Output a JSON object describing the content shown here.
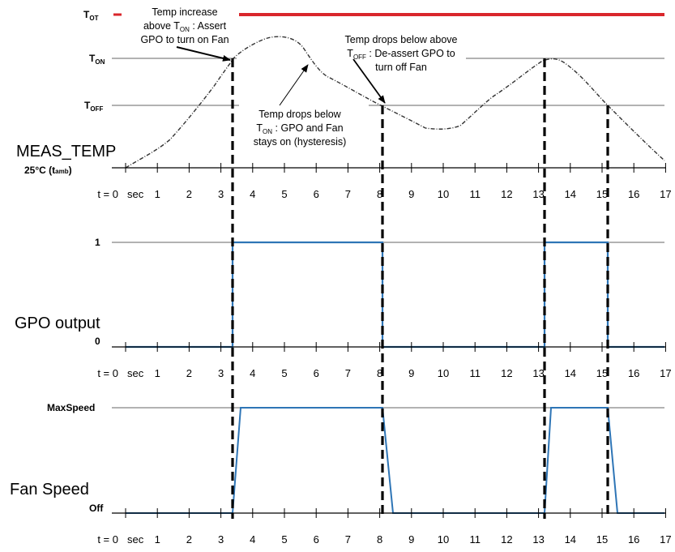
{
  "colors": {
    "threshold_line": "#999999",
    "tot_line": "#d9262b",
    "signal": "#2e75b6",
    "dash": "#000000",
    "curve": "#333333"
  },
  "levels": {
    "tot": {
      "main": "T",
      "sub": "OT"
    },
    "ton": {
      "main": "T",
      "sub": "ON"
    },
    "toff": {
      "main": "T",
      "sub": "OFF"
    },
    "amb": {
      "main": "25°C (t",
      "sub": "amb",
      "tail": ")"
    }
  },
  "panels": {
    "temp": {
      "title": "MEAS_TEMP"
    },
    "gpo": {
      "title": "GPO output",
      "high": "1",
      "low": "0"
    },
    "fan": {
      "title": "Fan Speed",
      "high": "MaxSpeed",
      "low": "Off"
    }
  },
  "axis": {
    "start": "t = 0",
    "unit": "sec",
    "ticks": [
      "1",
      "2",
      "3",
      "4",
      "5",
      "6",
      "7",
      "8",
      "9",
      "10",
      "11",
      "12",
      "13",
      "14",
      "15",
      "16",
      "17"
    ]
  },
  "annotations": {
    "a1": {
      "lines": [
        "Temp increase",
        "above T|ON| : Assert",
        "GPO to turn on Fan"
      ]
    },
    "a2": {
      "lines": [
        "Temp drops below above",
        "T|OFF| : De-assert  GPO to",
        "turn off Fan"
      ]
    },
    "a3": {
      "lines": [
        "Temp drops below",
        "T|ON| : GPO and Fan",
        "stays on (hysteresis)"
      ]
    }
  },
  "chart_data": {
    "type": "line",
    "series": [
      {
        "name": "MEAS_TEMP",
        "x": [
          0,
          0.5,
          1,
          1.5,
          2,
          2.5,
          3,
          3.3,
          3.8,
          4.3,
          4.8,
          5.3,
          5.8,
          6.2,
          6.7,
          7.2,
          7.7,
          8.2,
          8.7,
          9.2,
          9.7,
          10.2,
          10.7,
          11.2,
          11.7,
          12.2,
          12.7,
          13.2,
          13.5,
          14.0,
          14.5,
          15.0,
          15.4,
          15.8,
          16.3,
          16.8,
          17
        ],
        "y": [
          "amb",
          "",
          "",
          "",
          "",
          "",
          "",
          "T_ON",
          "",
          "",
          "",
          "",
          "",
          "",
          "",
          "",
          "",
          "T_OFF",
          "",
          "",
          "",
          "",
          "",
          "",
          "",
          "",
          "",
          "T_ON",
          "peak",
          "",
          "",
          "",
          "T_OFF",
          "",
          "",
          "",
          "amb"
        ]
      },
      {
        "name": "GPO output",
        "x": [
          0,
          3.35,
          3.35,
          8.2,
          8.2,
          13.3,
          13.3,
          15.25,
          15.25,
          17
        ],
        "y": [
          0,
          0,
          1,
          1,
          0,
          0,
          1,
          1,
          0,
          0
        ]
      },
      {
        "name": "Fan Speed",
        "x": [
          0,
          3.35,
          3.6,
          8.2,
          8.5,
          13.3,
          13.55,
          15.25,
          15.55,
          17
        ],
        "y": [
          "Off",
          "Off",
          "MaxSpeed",
          "MaxSpeed",
          "Off",
          "Off",
          "MaxSpeed",
          "MaxSpeed",
          "Off",
          "Off"
        ]
      }
    ],
    "xlim": [
      0,
      17
    ],
    "events_sec": [
      3.35,
      8.2,
      13.3,
      15.25
    ]
  }
}
